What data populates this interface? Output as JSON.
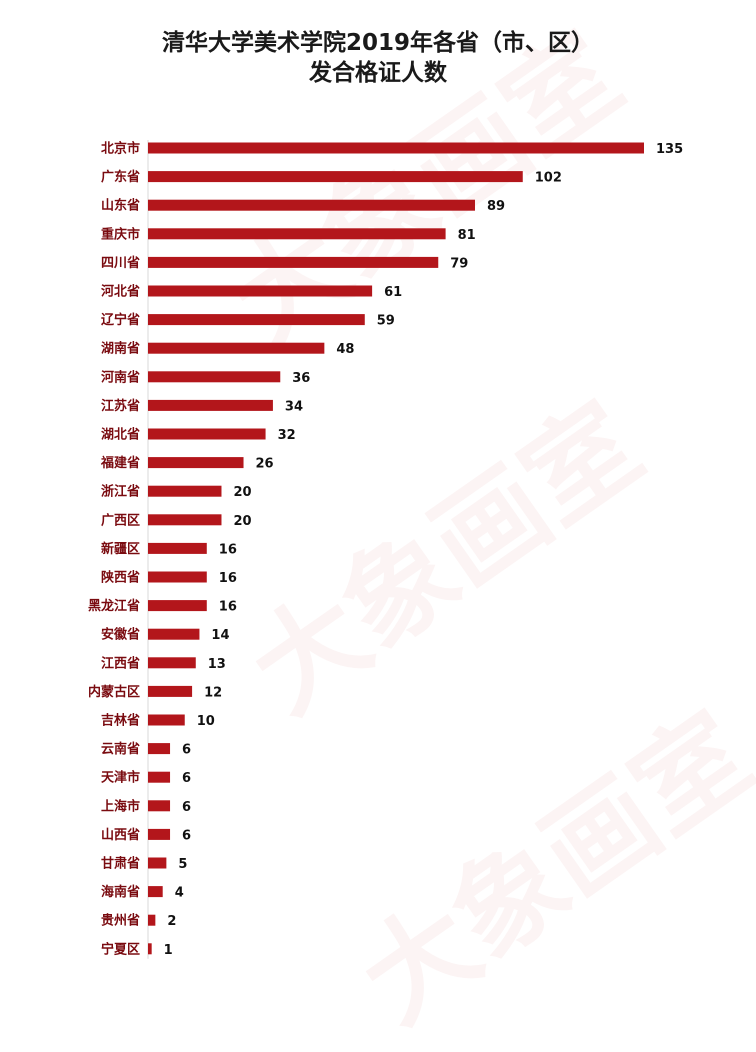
{
  "watermark": {
    "brand": "大象画室"
  },
  "title_line1": "清华大学美术学院2019年各省（市、区）",
  "title_line2": "发合格证人数",
  "colors": {
    "bar": "#b3161b",
    "category_label": "#7a0b10",
    "value_label": "#111111"
  },
  "chart_data": {
    "type": "bar",
    "orientation": "horizontal",
    "title": "清华大学美术学院2019年各省（市、区）发合格证人数",
    "categories": [
      "北京市",
      "广东省",
      "山东省",
      "重庆市",
      "四川省",
      "河北省",
      "辽宁省",
      "湖南省",
      "河南省",
      "江苏省",
      "湖北省",
      "福建省",
      "浙江省",
      "广西区",
      "新疆区",
      "陕西省",
      "黑龙江省",
      "安徽省",
      "江西省",
      "内蒙古区",
      "吉林省",
      "云南省",
      "天津市",
      "上海市",
      "山西省",
      "甘肃省",
      "海南省",
      "贵州省",
      "宁夏区"
    ],
    "values": [
      135,
      102,
      89,
      81,
      79,
      61,
      59,
      48,
      36,
      34,
      32,
      26,
      20,
      20,
      16,
      16,
      16,
      14,
      13,
      12,
      10,
      6,
      6,
      6,
      6,
      5,
      4,
      2,
      1
    ],
    "xlim": [
      0,
      135
    ],
    "grid": false,
    "legend": "none"
  }
}
